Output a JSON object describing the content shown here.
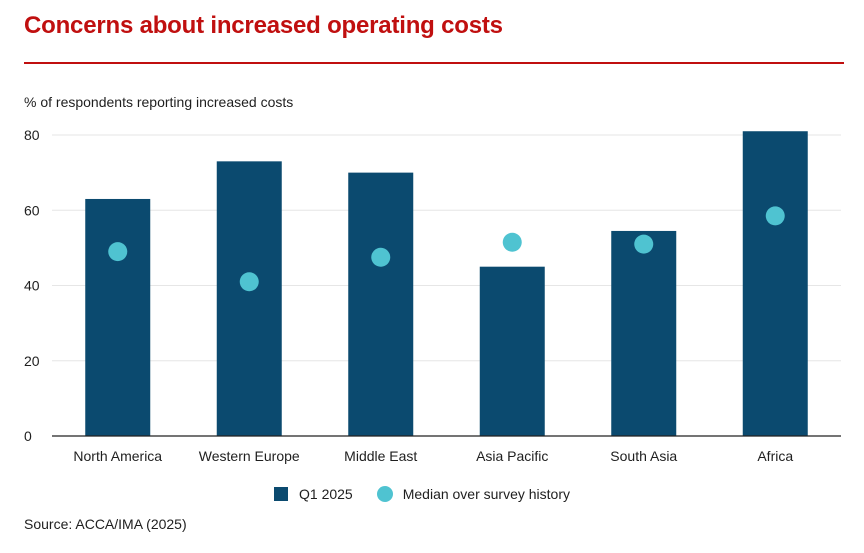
{
  "title": "Concerns about increased operating costs",
  "source": "Source: ACCA/IMA (2025)",
  "colors": {
    "title": "#c00f0f",
    "bar": "#0b4a6f",
    "dot": "#4fc3d1",
    "grid": "#e6e6e6",
    "axis": "#222222"
  },
  "chart_data": {
    "type": "bar",
    "ylabel": "% of respondents reporting increased costs",
    "ylim": [
      0,
      80
    ],
    "yticks": [
      0,
      20,
      40,
      60,
      80
    ],
    "grid": true,
    "legend_position": "bottom",
    "categories": [
      "North America",
      "Western Europe",
      "Middle East",
      "Asia Pacific",
      "South Asia",
      "Africa"
    ],
    "series": [
      {
        "name": "Q1 2025",
        "kind": "bar",
        "color": "#0b4a6f",
        "values": [
          63,
          73,
          70,
          45,
          54.5,
          81
        ]
      },
      {
        "name": "Median over survey history",
        "kind": "dot",
        "color": "#4fc3d1",
        "values": [
          49,
          41,
          47.5,
          51.5,
          51,
          58.5
        ]
      }
    ]
  }
}
